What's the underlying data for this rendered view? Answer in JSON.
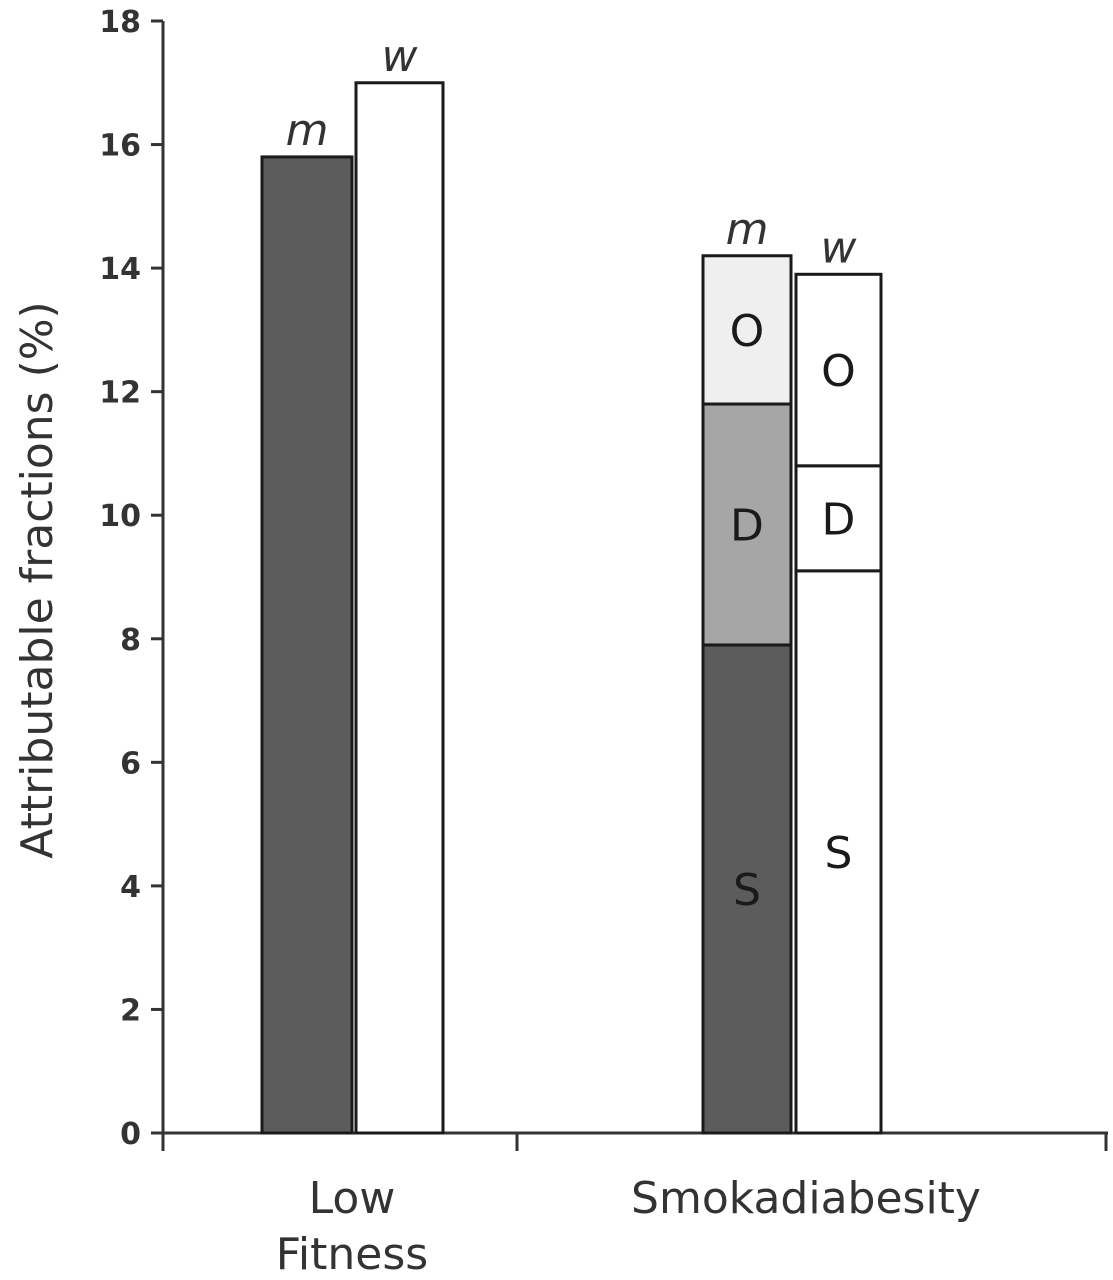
{
  "chart_data": {
    "type": "bar",
    "stacked": true,
    "ylabel": "Attributable fractions (%)",
    "xlabel": "",
    "ylim": [
      0,
      18
    ],
    "yticks": [
      0,
      2,
      4,
      6,
      8,
      10,
      12,
      14,
      16,
      18
    ],
    "grid": false,
    "legend": "none",
    "categories": [
      {
        "label_lines": [
          "Low",
          "Fitness"
        ]
      },
      {
        "label_lines": [
          "Smokadiabesity"
        ]
      }
    ],
    "bars": [
      {
        "category": 0,
        "group": "m",
        "label": "m",
        "total": 15.8,
        "segments": [
          {
            "label": "",
            "value": 15.8,
            "color": "#5c5c5c"
          }
        ]
      },
      {
        "category": 0,
        "group": "w",
        "label": "w",
        "total": 17.0,
        "segments": [
          {
            "label": "",
            "value": 17.0,
            "color": "#ffffff"
          }
        ]
      },
      {
        "category": 1,
        "group": "m",
        "label": "m",
        "total": 14.2,
        "segments": [
          {
            "label": "S",
            "value": 7.9,
            "color": "#5c5c5c"
          },
          {
            "label": "D",
            "value": 3.9,
            "color": "#a6a6a6"
          },
          {
            "label": "O",
            "value": 2.4,
            "color": "#efefef"
          }
        ]
      },
      {
        "category": 1,
        "group": "w",
        "label": "w",
        "total": 13.9,
        "segments": [
          {
            "label": "S",
            "value": 9.1,
            "color": "#ffffff"
          },
          {
            "label": "D",
            "value": 1.7,
            "color": "#ffffff"
          },
          {
            "label": "O",
            "value": 3.1,
            "color": "#ffffff"
          }
        ]
      }
    ]
  }
}
